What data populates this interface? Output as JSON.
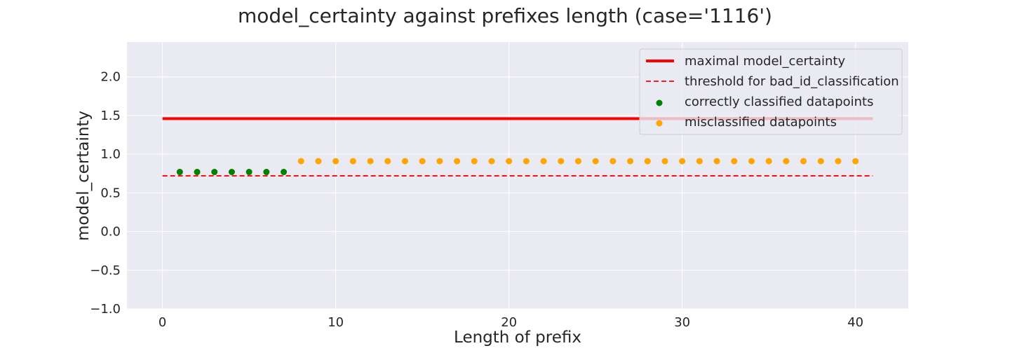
{
  "chart_data": {
    "type": "scatter",
    "title": "model_certainty against prefixes length (case='1116')",
    "xlabel": "Length of prefix",
    "ylabel": "model_certainty",
    "xlim": [
      -2.05,
      43.05
    ],
    "ylim": [
      -1.0,
      2.45
    ],
    "xticks": [
      0,
      10,
      20,
      30,
      40
    ],
    "yticks": [
      -1.0,
      -0.5,
      0.0,
      0.5,
      1.0,
      1.5,
      2.0
    ],
    "xtick_labels": [
      "0",
      "10",
      "20",
      "30",
      "40"
    ],
    "ytick_labels": [
      "−1.0",
      "−0.5",
      "0.0",
      "0.5",
      "1.0",
      "1.5",
      "2.0"
    ],
    "grid": true,
    "legend_placement": "top-right",
    "lines": [
      {
        "name": "maximal model_certainty",
        "color": "#ff0000",
        "style": "solid",
        "x": [
          0,
          41
        ],
        "y": [
          1.46,
          1.46
        ]
      },
      {
        "name": "threshold for bad_id_classification",
        "color": "#ff0000",
        "style": "dashed",
        "x": [
          0,
          41
        ],
        "y": [
          0.72,
          0.72
        ]
      }
    ],
    "series": [
      {
        "name": "correctly classified datapoints",
        "color": "#008000",
        "x": [
          1,
          2,
          3,
          4,
          5,
          6,
          7
        ],
        "y": [
          0.77,
          0.77,
          0.77,
          0.77,
          0.77,
          0.77,
          0.77
        ]
      },
      {
        "name": "misclassified datapoints",
        "color": "#ffa500",
        "x": [
          8,
          9,
          10,
          11,
          12,
          13,
          14,
          15,
          16,
          17,
          18,
          19,
          20,
          21,
          22,
          23,
          24,
          25,
          26,
          27,
          28,
          29,
          30,
          31,
          32,
          33,
          34,
          35,
          36,
          37,
          38,
          39,
          40
        ],
        "y": [
          0.91,
          0.91,
          0.91,
          0.91,
          0.91,
          0.91,
          0.91,
          0.91,
          0.91,
          0.91,
          0.91,
          0.91,
          0.91,
          0.91,
          0.91,
          0.91,
          0.91,
          0.91,
          0.91,
          0.91,
          0.91,
          0.91,
          0.91,
          0.91,
          0.91,
          0.91,
          0.91,
          0.91,
          0.91,
          0.91,
          0.91,
          0.91,
          0.91
        ]
      }
    ],
    "legend": [
      "maximal model_certainty",
      "threshold for bad_id_classification",
      "correctly classified datapoints",
      "misclassified datapoints"
    ],
    "colors": {
      "plot_background": "#eaeaf2",
      "grid": "#ffffff",
      "text": "#262626"
    }
  }
}
